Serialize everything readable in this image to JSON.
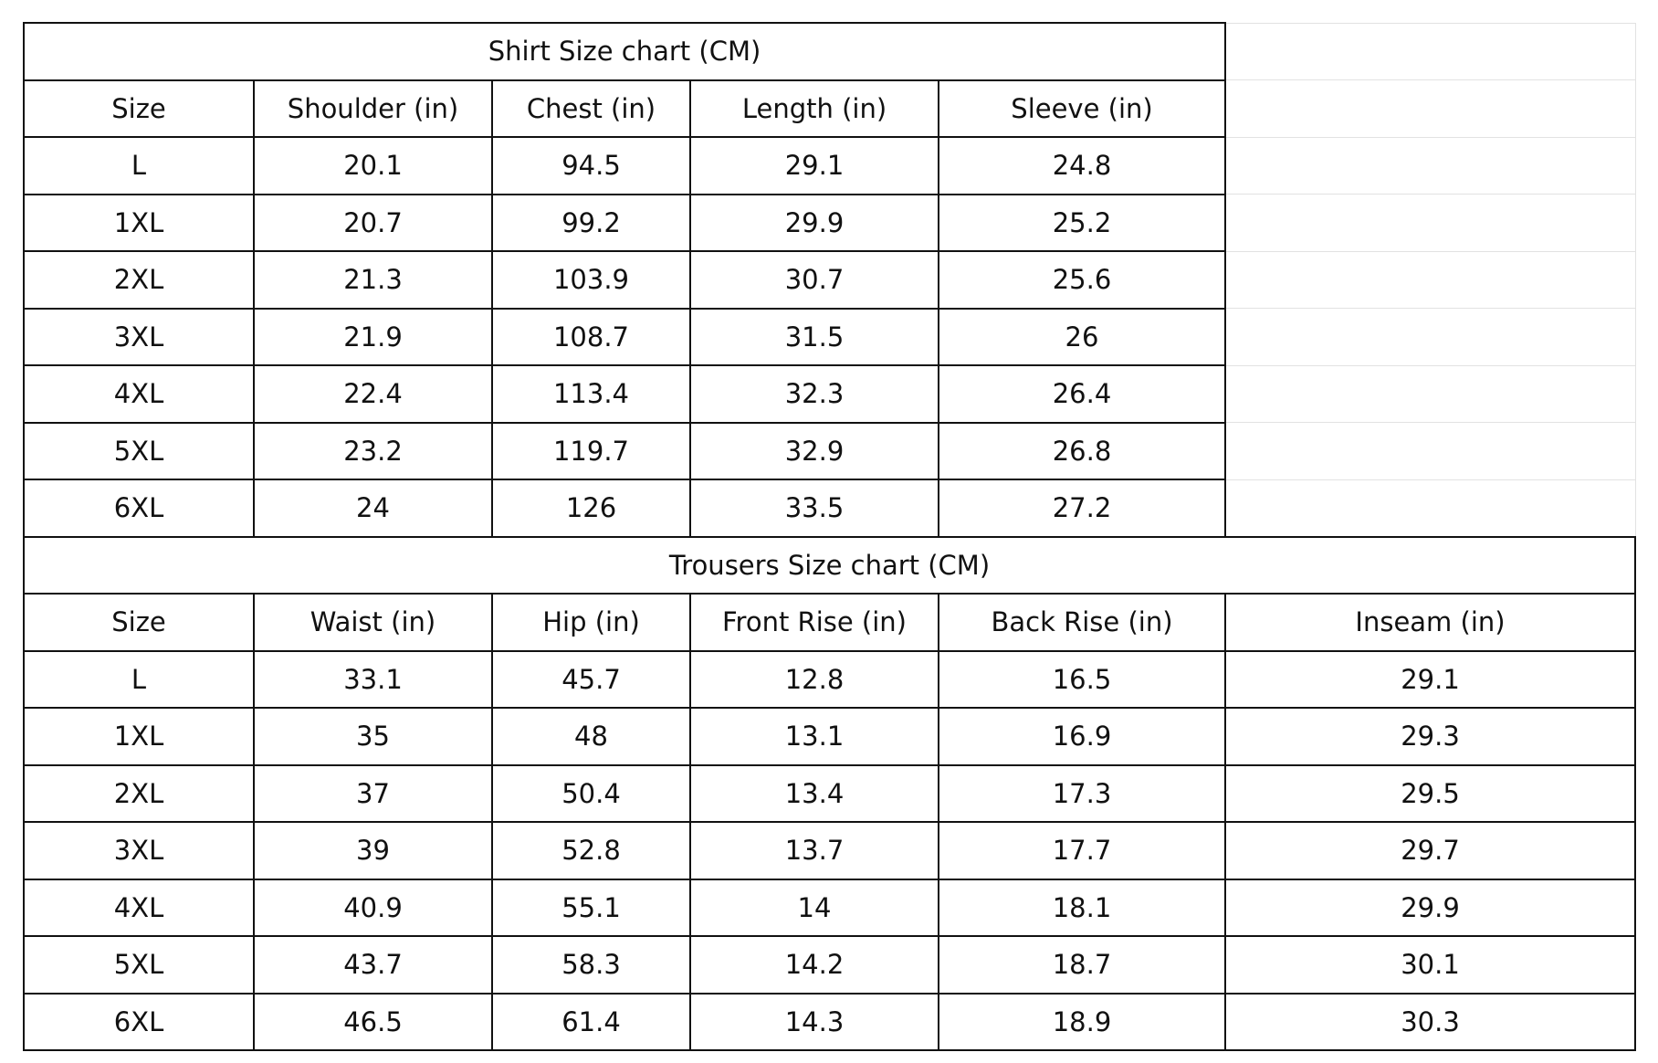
{
  "shirt": {
    "title": "Shirt Size chart (CM)",
    "headers": [
      "Size",
      "Shoulder (in)",
      "Chest (in)",
      "Length (in)",
      "Sleeve (in)"
    ],
    "rows": [
      [
        "L",
        "20.1",
        "94.5",
        "29.1",
        "24.8"
      ],
      [
        "1XL",
        "20.7",
        "99.2",
        "29.9",
        "25.2"
      ],
      [
        "2XL",
        "21.3",
        "103.9",
        "30.7",
        "25.6"
      ],
      [
        "3XL",
        "21.9",
        "108.7",
        "31.5",
        "26"
      ],
      [
        "4XL",
        "22.4",
        "113.4",
        "32.3",
        "26.4"
      ],
      [
        "5XL",
        "23.2",
        "119.7",
        "32.9",
        "26.8"
      ],
      [
        "6XL",
        "24",
        "126",
        "33.5",
        "27.2"
      ]
    ]
  },
  "trousers": {
    "title": "Trousers Size chart (CM)",
    "headers": [
      "Size",
      "Waist (in)",
      "Hip (in)",
      "Front Rise (in)",
      "Back Rise (in)",
      "Inseam (in)"
    ],
    "rows": [
      [
        "L",
        "33.1",
        "45.7",
        "12.8",
        "16.5",
        "29.1"
      ],
      [
        "1XL",
        "35",
        "48",
        "13.1",
        "16.9",
        "29.3"
      ],
      [
        "2XL",
        "37",
        "50.4",
        "13.4",
        "17.3",
        "29.5"
      ],
      [
        "3XL",
        "39",
        "52.8",
        "13.7",
        "17.7",
        "29.7"
      ],
      [
        "4XL",
        "40.9",
        "55.1",
        "14",
        "18.1",
        "29.9"
      ],
      [
        "5XL",
        "43.7",
        "58.3",
        "14.2",
        "18.7",
        "30.1"
      ],
      [
        "6XL",
        "46.5",
        "61.4",
        "14.3",
        "18.9",
        "30.3"
      ]
    ]
  }
}
